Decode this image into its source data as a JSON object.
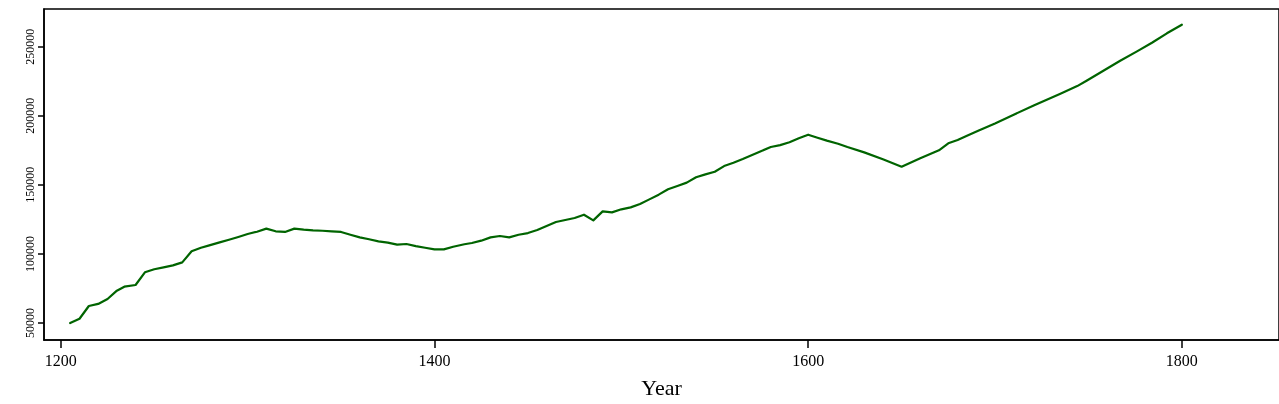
{
  "chart_data": {
    "type": "line",
    "xlabel": "Year",
    "xlim": [
      1191,
      1852
    ],
    "xticks": [
      1200,
      1400,
      1600,
      1800
    ],
    "ylim": [
      37700,
      277300
    ],
    "yticks": [
      50000,
      100000,
      150000,
      200000,
      250000
    ],
    "marker": "none",
    "line_style": "solid",
    "series": [
      {
        "color": "#006400",
        "x": [
          1205,
          1210,
          1215,
          1220,
          1225,
          1230,
          1234,
          1240,
          1245,
          1250,
          1255,
          1260,
          1265,
          1270,
          1275,
          1279,
          1285,
          1290,
          1295,
          1300,
          1305,
          1310,
          1315,
          1320,
          1325,
          1330,
          1335,
          1340,
          1345,
          1350,
          1355,
          1360,
          1365,
          1370,
          1375,
          1380,
          1385,
          1390,
          1395,
          1400,
          1405,
          1410,
          1416,
          1420,
          1425,
          1430,
          1435,
          1440,
          1445,
          1450,
          1455,
          1460,
          1465,
          1470,
          1475,
          1480,
          1485,
          1490,
          1495,
          1500,
          1505,
          1510,
          1515,
          1520,
          1525,
          1530,
          1535,
          1540,
          1545,
          1550,
          1555,
          1560,
          1565,
          1570,
          1575,
          1580,
          1585,
          1590,
          1595,
          1600,
          1605,
          1610,
          1616,
          1621,
          1630,
          1640,
          1650,
          1660,
          1670,
          1675,
          1680,
          1685,
          1691,
          1700,
          1710,
          1721,
          1735,
          1744,
          1749,
          1758,
          1767,
          1776,
          1784,
          1792,
          1800
        ],
        "values": [
          50000,
          53100,
          62300,
          63800,
          67400,
          73400,
          76300,
          77500,
          86700,
          88900,
          90300,
          91700,
          93900,
          101900,
          104500,
          106000,
          108400,
          110300,
          112300,
          114400,
          116100,
          118300,
          116400,
          115900,
          118300,
          117600,
          117100,
          116800,
          116400,
          115900,
          113900,
          112000,
          110600,
          109100,
          108200,
          106700,
          107200,
          105700,
          104500,
          103300,
          103300,
          105200,
          107000,
          107900,
          109600,
          112000,
          113000,
          112000,
          113900,
          115100,
          117300,
          120200,
          123100,
          124600,
          126000,
          128400,
          124300,
          130800,
          130100,
          132300,
          133700,
          136100,
          139500,
          142900,
          146800,
          149200,
          151600,
          155500,
          157600,
          159500,
          163600,
          166000,
          168700,
          171600,
          174500,
          177400,
          178800,
          180800,
          183700,
          186300,
          184100,
          182000,
          179800,
          177400,
          173500,
          168500,
          163100,
          169200,
          175000,
          180100,
          182500,
          185600,
          189200,
          194500,
          200800,
          207600,
          216000,
          221500,
          225400,
          232600,
          239800,
          246600,
          252900,
          259700,
          265900
        ]
      }
    ]
  }
}
